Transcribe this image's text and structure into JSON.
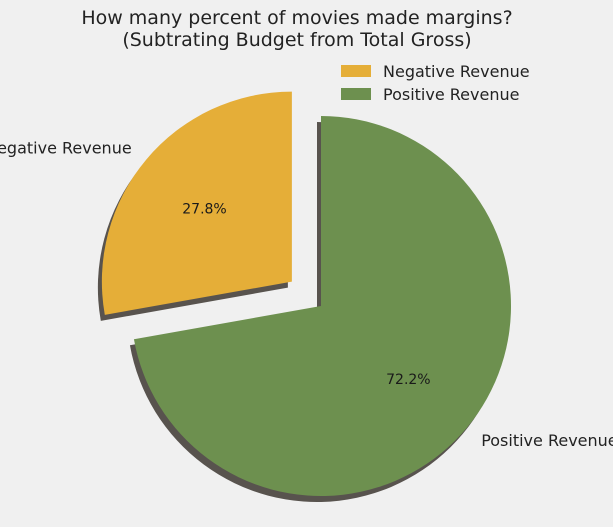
{
  "chart_data": {
    "type": "pie",
    "title": "How many percent of movies made margins?\n(Subtrating Budget from Total Gross)",
    "labels": [
      "Negative Revenue",
      "Positive Revenue"
    ],
    "values": [
      27.8,
      72.2
    ],
    "pct_labels": [
      "27.8%",
      "72.2%"
    ],
    "colors": [
      "#e5ae38",
      "#6d904f"
    ],
    "explode": [
      0.2,
      0
    ],
    "shadow": true,
    "start_angle_deg": 90,
    "legend": {
      "placement": "upper-right",
      "entries": [
        "Negative Revenue",
        "Positive Revenue"
      ]
    }
  }
}
